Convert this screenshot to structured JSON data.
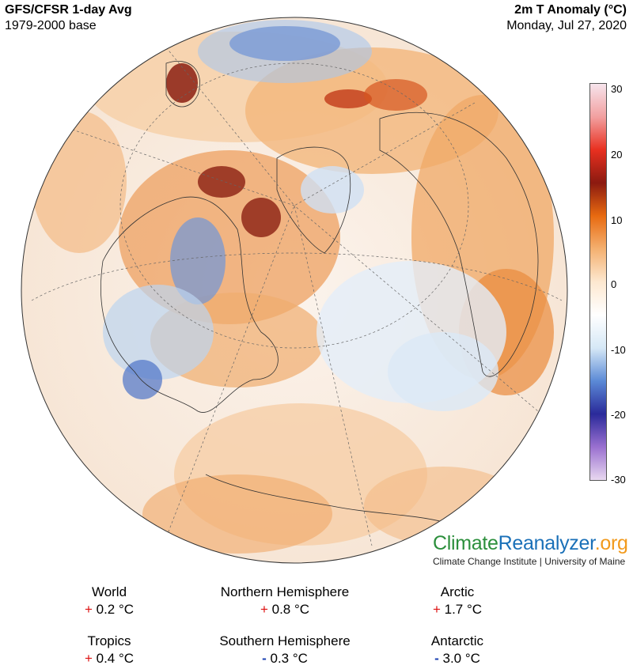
{
  "header": {
    "left_line1": "GFS/CFSR 1-day Avg",
    "left_line2": "1979-2000 base",
    "right_line1": "2m T Anomaly (°C)",
    "right_line2": "Monday, Jul 27, 2020"
  },
  "colorbar": {
    "ticks": [
      "30",
      "20",
      "10",
      "0",
      "-10",
      "-20",
      "-30"
    ],
    "colors": [
      "#f6e4ec",
      "#f2a0a0",
      "#e83020",
      "#8b1a10",
      "#e86a10",
      "#f4b070",
      "#fde8d0",
      "#ffffff",
      "#d6e8f6",
      "#5b8ad6",
      "#2a2a9a",
      "#9a70d0",
      "#e8d8f0"
    ]
  },
  "brand": {
    "part1": "Climate",
    "part2": "Reanalyzer",
    "part3": ".org",
    "subtitle": "Climate Change Institute | University of Maine"
  },
  "stats": [
    {
      "label": "World",
      "sign": "+",
      "value": "0.2 °C"
    },
    {
      "label": "Northern Hemisphere",
      "sign": "+",
      "value": "0.8 °C"
    },
    {
      "label": "Arctic",
      "sign": "+",
      "value": "1.7 °C"
    },
    {
      "label": "Tropics",
      "sign": "+",
      "value": "0.4 °C"
    },
    {
      "label": "Southern Hemisphere",
      "sign": "-",
      "value": "0.3 °C"
    },
    {
      "label": "Antarctic",
      "sign": "-",
      "value": "3.0 °C"
    }
  ]
}
